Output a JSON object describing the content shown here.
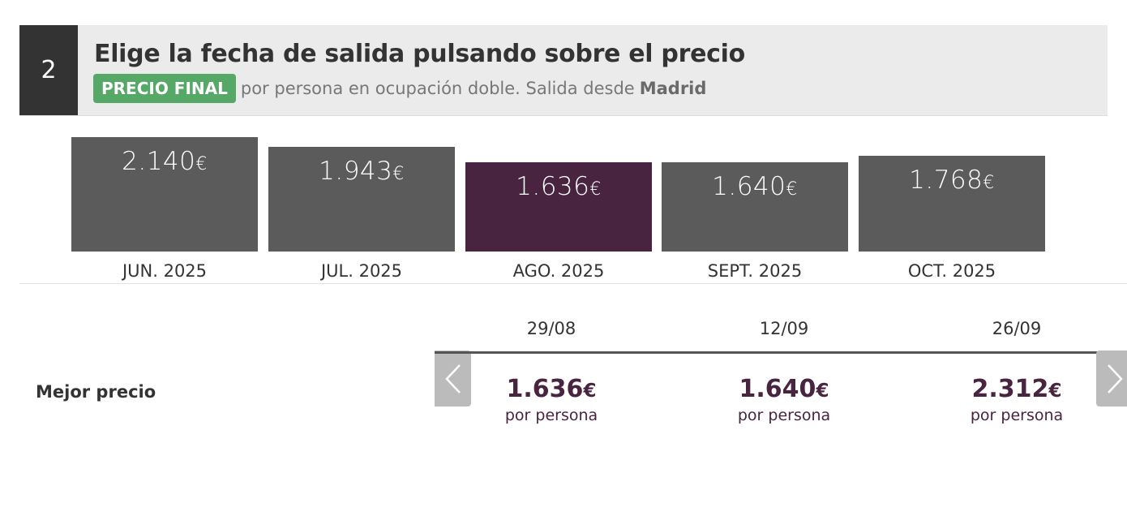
{
  "header": {
    "step": "2",
    "title": "Elige la fecha de salida pulsando sobre el precio",
    "badge": "PRECIO FINAL",
    "subtitle": "por persona en ocupación doble. Salida desde",
    "origin": "Madrid"
  },
  "months": [
    {
      "price": "2.140",
      "currency": "€",
      "label": "JUN. 2025",
      "value": 2140,
      "selected": false
    },
    {
      "price": "1.943",
      "currency": "€",
      "label": "JUL. 2025",
      "value": 1943,
      "selected": false
    },
    {
      "price": "1.636",
      "currency": "€",
      "label": "AGO. 2025",
      "value": 1636,
      "selected": true
    },
    {
      "price": "1.640",
      "currency": "€",
      "label": "SEPT. 2025",
      "value": 1640,
      "selected": false
    },
    {
      "price": "1.768",
      "currency": "€",
      "label": "OCT. 2025",
      "value": 1768,
      "selected": false
    }
  ],
  "dates": {
    "row_label": "Mejor precio",
    "items": [
      {
        "date": "29/08",
        "price": "1.636",
        "currency": "€",
        "per": "por persona"
      },
      {
        "date": "12/09",
        "price": "1.640",
        "currency": "€",
        "per": "por persona"
      },
      {
        "date": "26/09",
        "price": "2.312",
        "currency": "€",
        "per": "por persona"
      }
    ]
  },
  "icons": {
    "prev": "chevron-left-icon",
    "next": "chevron-right-icon"
  },
  "colors": {
    "selected": "#482440",
    "bar": "#5b5b5b",
    "badge": "#55a866",
    "header_bg": "#ebebeb"
  }
}
